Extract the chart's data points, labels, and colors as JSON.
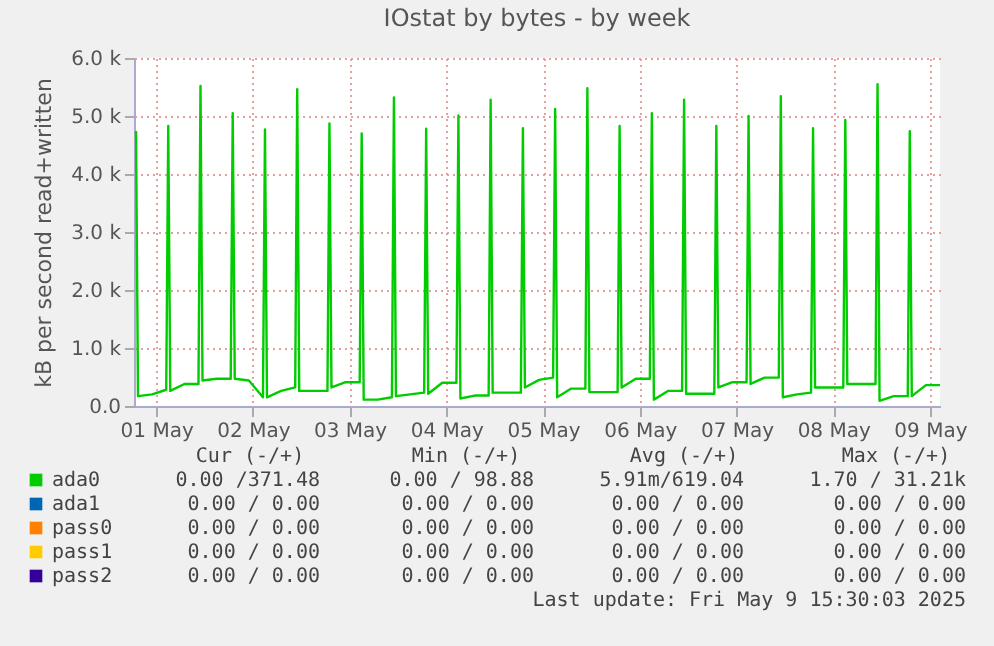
{
  "chart_data": {
    "type": "line",
    "title": "IOstat by bytes - by week",
    "ylabel": "kB per second read+written",
    "xlim": [
      "2025-05-01T06:30",
      "2025-05-09T14:30"
    ],
    "xticks": [
      {
        "value": "2025-05-01T12:00",
        "label": "01 May"
      },
      {
        "value": "2025-05-02T12:00",
        "label": "02 May"
      },
      {
        "value": "2025-05-03T12:00",
        "label": "03 May"
      },
      {
        "value": "2025-05-04T12:00",
        "label": "04 May"
      },
      {
        "value": "2025-05-05T12:00",
        "label": "05 May"
      },
      {
        "value": "2025-05-06T12:00",
        "label": "06 May"
      },
      {
        "value": "2025-05-07T12:00",
        "label": "07 May"
      },
      {
        "value": "2025-05-08T12:00",
        "label": "08 May"
      },
      {
        "value": "2025-05-09T12:00",
        "label": "09 May"
      }
    ],
    "ylim": [
      0,
      6000
    ],
    "yticks": [
      {
        "value": 0,
        "label": "0.0"
      },
      {
        "value": 1000,
        "label": "1.0 k"
      },
      {
        "value": 2000,
        "label": "2.0 k"
      },
      {
        "value": 3000,
        "label": "3.0 k"
      },
      {
        "value": 4000,
        "label": "4.0 k"
      },
      {
        "value": 5000,
        "label": "5.0 k"
      },
      {
        "value": 6000,
        "label": "6.0 k"
      }
    ],
    "grid": true,
    "legend": "bottom",
    "marker": "none",
    "line_style": "solid",
    "series": [
      {
        "name": "ada0",
        "color": "#00cc00",
        "x": [
          "2025-05-01T07:00",
          "2025-05-01T07:30",
          "2025-05-01T11:00",
          "2025-05-01T14:30",
          "2025-05-01T15:00",
          "2025-05-01T15:30",
          "2025-05-01T19:00",
          "2025-05-01T22:30",
          "2025-05-01T23:00",
          "2025-05-01T23:30",
          "2025-05-02T03:00",
          "2025-05-02T06:30",
          "2025-05-02T07:00",
          "2025-05-02T07:30",
          "2025-05-02T11:00",
          "2025-05-02T14:30",
          "2025-05-02T15:00",
          "2025-05-02T15:30",
          "2025-05-02T19:00",
          "2025-05-02T22:30",
          "2025-05-02T23:00",
          "2025-05-02T23:30",
          "2025-05-03T03:00",
          "2025-05-03T06:30",
          "2025-05-03T07:00",
          "2025-05-03T07:30",
          "2025-05-03T11:00",
          "2025-05-03T14:30",
          "2025-05-03T15:00",
          "2025-05-03T15:30",
          "2025-05-03T19:00",
          "2025-05-03T22:30",
          "2025-05-03T23:00",
          "2025-05-03T23:30",
          "2025-05-04T03:00",
          "2025-05-04T06:30",
          "2025-05-04T07:00",
          "2025-05-04T07:30",
          "2025-05-04T11:00",
          "2025-05-04T14:30",
          "2025-05-04T15:00",
          "2025-05-04T15:30",
          "2025-05-04T19:00",
          "2025-05-04T22:30",
          "2025-05-04T23:00",
          "2025-05-04T23:30",
          "2025-05-05T03:00",
          "2025-05-05T06:30",
          "2025-05-05T07:00",
          "2025-05-05T07:30",
          "2025-05-05T11:00",
          "2025-05-05T14:30",
          "2025-05-05T15:00",
          "2025-05-05T15:30",
          "2025-05-05T19:00",
          "2025-05-05T22:30",
          "2025-05-05T23:00",
          "2025-05-05T23:30",
          "2025-05-06T03:00",
          "2025-05-06T06:30",
          "2025-05-06T07:00",
          "2025-05-06T07:30",
          "2025-05-06T11:00",
          "2025-05-06T14:30",
          "2025-05-06T15:00",
          "2025-05-06T15:30",
          "2025-05-06T19:00",
          "2025-05-06T22:30",
          "2025-05-06T23:00",
          "2025-05-06T23:30",
          "2025-05-07T03:00",
          "2025-05-07T06:30",
          "2025-05-07T07:00",
          "2025-05-07T07:30",
          "2025-05-07T11:00",
          "2025-05-07T14:30",
          "2025-05-07T15:00",
          "2025-05-07T15:30",
          "2025-05-07T19:00",
          "2025-05-07T22:30",
          "2025-05-07T23:00",
          "2025-05-07T23:30",
          "2025-05-08T03:00",
          "2025-05-08T06:30",
          "2025-05-08T07:00",
          "2025-05-08T07:30",
          "2025-05-08T11:00",
          "2025-05-08T14:30",
          "2025-05-08T15:00",
          "2025-05-08T15:30",
          "2025-05-08T19:00",
          "2025-05-08T22:30",
          "2025-05-08T23:00",
          "2025-05-08T23:30",
          "2025-05-09T03:00",
          "2025-05-09T06:30",
          "2025-05-09T07:00",
          "2025-05-09T07:30",
          "2025-05-09T11:00",
          "2025-05-09T14:30"
        ],
        "values": [
          4740,
          170,
          200,
          280,
          4830,
          260,
          380,
          380,
          5520,
          440,
          470,
          470,
          5050,
          470,
          440,
          150,
          4770,
          150,
          260,
          320,
          5460,
          260,
          260,
          260,
          4870,
          320,
          410,
          410,
          4700,
          110,
          110,
          150,
          5320,
          170,
          200,
          230,
          4780,
          210,
          400,
          400,
          5010,
          130,
          180,
          180,
          5280,
          230,
          230,
          230,
          4790,
          320,
          450,
          490,
          5120,
          150,
          300,
          300,
          5480,
          240,
          240,
          240,
          4830,
          320,
          470,
          470,
          5050,
          110,
          260,
          260,
          5280,
          210,
          210,
          210,
          4830,
          320,
          410,
          410,
          5000,
          380,
          490,
          490,
          5340,
          150,
          200,
          230,
          4790,
          320,
          320,
          320,
          4930,
          380,
          380,
          380,
          5550,
          90,
          170,
          170,
          4740,
          170,
          360,
          360
        ]
      },
      {
        "name": "ada1",
        "color": "#0066b3"
      },
      {
        "name": "pass0",
        "color": "#ff8000"
      },
      {
        "name": "pass1",
        "color": "#ffcc00"
      },
      {
        "name": "pass2",
        "color": "#330099"
      }
    ],
    "annotations": [
      "Cur (-/+)",
      "Min (-/+)",
      "Avg (-/+)",
      "Max (-/+)",
      "0.00 /371.48",
      "0.00 / 98.88",
      "5.91m/619.04",
      "1.70 / 31.21k",
      "0.00 /  0.00",
      "0.00 /  0.00",
      "0.00 /  0.00",
      "0.00 /  0.00",
      "0.00 /  0.00",
      "0.00 /  0.00",
      "0.00 /  0.00",
      "0.00 /  0.00",
      "0.00 /  0.00",
      "0.00 /  0.00",
      "0.00 /  0.00",
      "0.00 /  0.00",
      "0.00 /  0.00",
      "0.00 /  0.00",
      "0.00 /  0.00",
      "0.00 /  0.00",
      "Last update: Fri May  9 15:30:03 2025"
    ]
  }
}
